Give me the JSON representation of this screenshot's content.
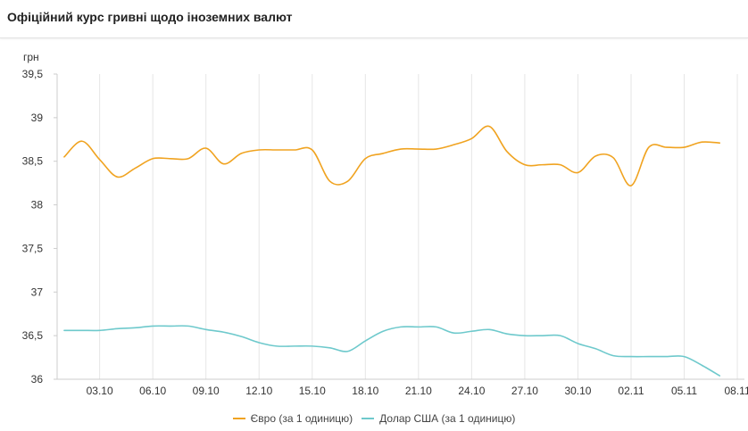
{
  "header": {
    "title": "Офіційний курс гривні щодо іноземних валют"
  },
  "chart_data": {
    "type": "line",
    "ylabel": "грн",
    "ylim": [
      36,
      39.5
    ],
    "yticks": [
      "39,5",
      "39",
      "38,5",
      "38",
      "37,5",
      "37",
      "36,5",
      "36"
    ],
    "ytick_values": [
      39.5,
      39,
      38.5,
      38,
      37.5,
      37,
      36.5,
      36
    ],
    "x": [
      1,
      2,
      3,
      4,
      5,
      6,
      7,
      8,
      9,
      10,
      11,
      12,
      13,
      14,
      15,
      16,
      17,
      18,
      19,
      20,
      21,
      22,
      23,
      24,
      25,
      26,
      27,
      28,
      29,
      30,
      31,
      32,
      33,
      34,
      35,
      36,
      37,
      38
    ],
    "xticks": [
      "03.10",
      "06.10",
      "09.10",
      "12.10",
      "15.10",
      "18.10",
      "21.10",
      "24.10",
      "27.10",
      "30.10",
      "02.11",
      "05.11",
      "08.11"
    ],
    "xtick_values": [
      3,
      6,
      9,
      12,
      15,
      18,
      21,
      24,
      27,
      30,
      33,
      36,
      39
    ],
    "xlim": [
      0.6,
      39.4
    ],
    "grid": "vertical",
    "legend_position": "bottom",
    "series": [
      {
        "name": "Євро (за 1 одиницю)",
        "color": "#f0a320",
        "values": [
          38.55,
          38.73,
          38.52,
          38.32,
          38.42,
          38.53,
          38.53,
          38.53,
          38.65,
          38.47,
          38.59,
          38.63,
          38.63,
          38.63,
          38.63,
          38.27,
          38.27,
          38.53,
          38.59,
          38.64,
          38.64,
          38.64,
          38.69,
          38.76,
          38.9,
          38.61,
          38.46,
          38.46,
          38.46,
          38.37,
          38.56,
          38.54,
          38.22,
          38.66,
          38.66,
          38.66,
          38.72,
          38.71
        ]
      },
      {
        "name": "Долар США (за 1 одиницю)",
        "color": "#6ec9cc",
        "values": [
          36.56,
          36.56,
          36.56,
          36.58,
          36.59,
          36.61,
          36.61,
          36.61,
          36.57,
          36.54,
          36.49,
          36.42,
          36.38,
          36.38,
          36.38,
          36.36,
          36.32,
          36.44,
          36.55,
          36.6,
          36.6,
          36.6,
          36.53,
          36.55,
          36.57,
          36.52,
          36.5,
          36.5,
          36.5,
          36.41,
          36.35,
          36.27,
          36.26,
          36.26,
          36.26,
          36.26,
          36.16,
          36.04
        ]
      }
    ]
  }
}
